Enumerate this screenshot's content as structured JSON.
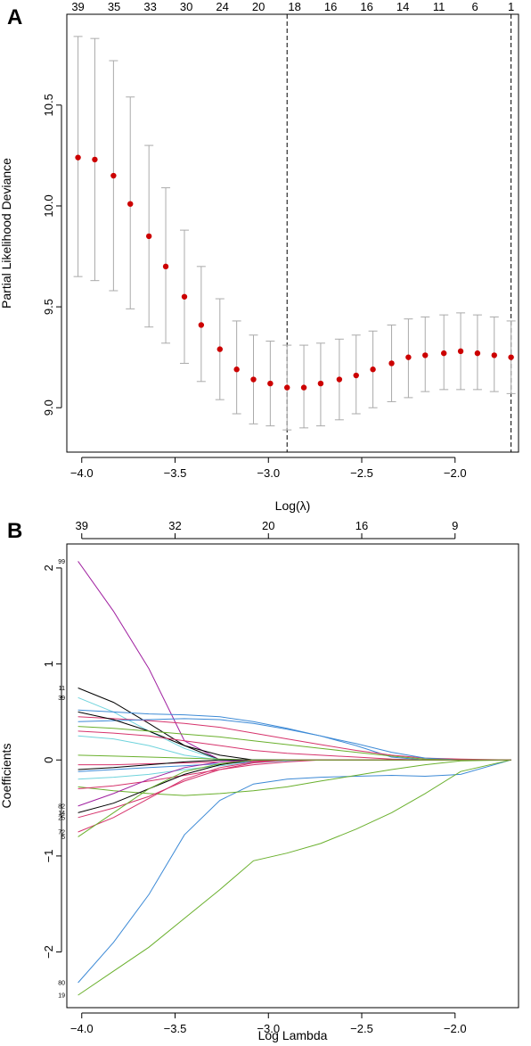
{
  "panels": {
    "a": {
      "label": "A"
    },
    "b": {
      "label": "B"
    }
  },
  "chart_data": [
    {
      "type": "scatter",
      "panel": "A",
      "xlabel": "Log(λ)",
      "ylabel": "Partial Likelihood Deviance",
      "xlim": [
        -4.08,
        -1.66
      ],
      "ylim": [
        8.78,
        10.95
      ],
      "x_ticks": [
        -4.0,
        -3.5,
        -3.0,
        -2.5,
        -2.0
      ],
      "x_tick_labels": [
        "−4.0",
        "−3.5",
        "−3.0",
        "−2.5",
        "−2.0"
      ],
      "y_ticks": [
        9.0,
        9.5,
        10.0,
        10.5
      ],
      "y_tick_labels": [
        "9.0",
        "9.5",
        "10.0",
        "10.5"
      ],
      "top_axis_labels": [
        "39",
        "35",
        "33",
        "30",
        "24",
        "20",
        "18",
        "16",
        "16",
        "14",
        "11",
        "6",
        "1"
      ],
      "vlines": [
        -2.9,
        -1.7
      ],
      "point_color": "#cc0000",
      "errorbar_color": "#aaaaaa",
      "points": [
        {
          "x": -4.02,
          "y": 10.24,
          "lo": 9.65,
          "hi": 10.84
        },
        {
          "x": -3.93,
          "y": 10.23,
          "lo": 9.63,
          "hi": 10.83
        },
        {
          "x": -3.83,
          "y": 10.15,
          "lo": 9.58,
          "hi": 10.72
        },
        {
          "x": -3.74,
          "y": 10.01,
          "lo": 9.49,
          "hi": 10.54
        },
        {
          "x": -3.64,
          "y": 9.85,
          "lo": 9.4,
          "hi": 10.3
        },
        {
          "x": -3.55,
          "y": 9.7,
          "lo": 9.32,
          "hi": 10.09
        },
        {
          "x": -3.45,
          "y": 9.55,
          "lo": 9.22,
          "hi": 9.88
        },
        {
          "x": -3.36,
          "y": 9.41,
          "lo": 9.13,
          "hi": 9.7
        },
        {
          "x": -3.26,
          "y": 9.29,
          "lo": 9.04,
          "hi": 9.54
        },
        {
          "x": -3.17,
          "y": 9.19,
          "lo": 8.97,
          "hi": 9.43
        },
        {
          "x": -3.08,
          "y": 9.14,
          "lo": 8.92,
          "hi": 9.36
        },
        {
          "x": -2.99,
          "y": 9.12,
          "lo": 8.91,
          "hi": 9.33
        },
        {
          "x": -2.9,
          "y": 9.1,
          "lo": 8.89,
          "hi": 9.31
        },
        {
          "x": -2.81,
          "y": 9.1,
          "lo": 8.9,
          "hi": 9.31
        },
        {
          "x": -2.72,
          "y": 9.12,
          "lo": 8.91,
          "hi": 9.32
        },
        {
          "x": -2.62,
          "y": 9.14,
          "lo": 8.94,
          "hi": 9.34
        },
        {
          "x": -2.53,
          "y": 9.16,
          "lo": 8.97,
          "hi": 9.36
        },
        {
          "x": -2.44,
          "y": 9.19,
          "lo": 9.0,
          "hi": 9.38
        },
        {
          "x": -2.34,
          "y": 9.22,
          "lo": 9.03,
          "hi": 9.41
        },
        {
          "x": -2.25,
          "y": 9.25,
          "lo": 9.05,
          "hi": 9.44
        },
        {
          "x": -2.16,
          "y": 9.26,
          "lo": 9.08,
          "hi": 9.45
        },
        {
          "x": -2.06,
          "y": 9.27,
          "lo": 9.09,
          "hi": 9.46
        },
        {
          "x": -1.97,
          "y": 9.28,
          "lo": 9.09,
          "hi": 9.47
        },
        {
          "x": -1.88,
          "y": 9.27,
          "lo": 9.09,
          "hi": 9.46
        },
        {
          "x": -1.79,
          "y": 9.26,
          "lo": 9.08,
          "hi": 9.45
        },
        {
          "x": -1.7,
          "y": 9.25,
          "lo": 9.07,
          "hi": 9.43
        }
      ]
    },
    {
      "type": "line",
      "panel": "B",
      "xlabel": "Log Lambda",
      "ylabel": "Coefficients",
      "xlim": [
        -4.08,
        -1.66
      ],
      "ylim": [
        -2.58,
        2.25
      ],
      "x_ticks": [
        -4.0,
        -3.5,
        -3.0,
        -2.5,
        -2.0
      ],
      "x_tick_labels": [
        "−4.0",
        "−3.5",
        "−3.0",
        "−2.5",
        "−2.0"
      ],
      "y_ticks": [
        -2,
        -1,
        0,
        1,
        2
      ],
      "y_tick_labels": [
        "−2",
        "−1",
        "0",
        "1",
        "2"
      ],
      "top_axis_labels": [
        {
          "x": -4.0,
          "label": "39"
        },
        {
          "x": -3.5,
          "label": "32"
        },
        {
          "x": -3.0,
          "label": "20"
        },
        {
          "x": -2.5,
          "label": "16"
        },
        {
          "x": -2.0,
          "label": "9"
        }
      ],
      "x": [
        -4.02,
        -3.83,
        -3.64,
        -3.45,
        -3.26,
        -3.08,
        -2.9,
        -2.72,
        -2.53,
        -2.34,
        -2.16,
        -1.97,
        -1.7
      ],
      "series": [
        {
          "label": "99",
          "color": "#a020a0",
          "values": [
            2.07,
            1.55,
            0.95,
            0.2,
            0.0,
            0.0,
            0.0,
            0.0,
            0.0,
            0.0,
            0.0,
            0.0,
            0.0
          ]
        },
        {
          "label": "80",
          "color": "#3d8ad6",
          "values": [
            -2.32,
            -1.9,
            -1.4,
            -0.78,
            -0.42,
            -0.25,
            -0.2,
            -0.18,
            -0.17,
            -0.16,
            -0.17,
            -0.15,
            0.0
          ]
        },
        {
          "label": "19",
          "color": "#6ab02d",
          "values": [
            -2.45,
            -2.2,
            -1.95,
            -1.65,
            -1.35,
            -1.05,
            -0.97,
            -0.87,
            -0.72,
            -0.55,
            -0.35,
            -0.12,
            0.0
          ]
        },
        {
          "label": "11",
          "color": "#000000",
          "values": [
            0.75,
            0.6,
            0.38,
            0.15,
            0.0,
            0.0,
            0.0,
            0.0,
            0.0,
            0.0,
            0.0,
            0.0,
            0.0
          ]
        },
        {
          "label": "39",
          "color": "#6fd3dc",
          "values": [
            0.65,
            0.5,
            0.3,
            0.12,
            0.0,
            0.0,
            0.0,
            0.0,
            0.0,
            0.0,
            0.0,
            0.0,
            0.0
          ]
        },
        {
          "label": "",
          "color": "#3d8ad6",
          "values": [
            0.52,
            0.5,
            0.48,
            0.47,
            0.45,
            0.4,
            0.33,
            0.25,
            0.15,
            0.03,
            0.0,
            0.0,
            0.0
          ]
        },
        {
          "label": "",
          "color": "#d6336c",
          "values": [
            0.45,
            0.43,
            0.41,
            0.38,
            0.34,
            0.28,
            0.22,
            0.16,
            0.1,
            0.05,
            0.02,
            0.01,
            0.0
          ]
        },
        {
          "label": "",
          "color": "#3d8ad6",
          "values": [
            0.4,
            0.41,
            0.42,
            0.43,
            0.42,
            0.38,
            0.32,
            0.25,
            0.17,
            0.08,
            0.02,
            0.0,
            0.0
          ]
        },
        {
          "label": "",
          "color": "#000000",
          "values": [
            0.5,
            0.42,
            0.3,
            0.15,
            0.05,
            0.0,
            0.0,
            0.0,
            0.0,
            0.0,
            0.0,
            0.0,
            0.0
          ]
        },
        {
          "label": "",
          "color": "#6ab02d",
          "values": [
            0.35,
            0.33,
            0.3,
            0.27,
            0.24,
            0.2,
            0.16,
            0.12,
            0.08,
            0.04,
            0.01,
            0.0,
            0.0
          ]
        },
        {
          "label": "",
          "color": "#d6336c",
          "values": [
            0.3,
            0.28,
            0.25,
            0.2,
            0.15,
            0.1,
            0.07,
            0.05,
            0.03,
            0.01,
            0.0,
            0.0,
            0.0
          ]
        },
        {
          "label": "",
          "color": "#6fd3dc",
          "values": [
            0.25,
            0.22,
            0.15,
            0.05,
            0.0,
            0.0,
            0.0,
            0.0,
            0.0,
            0.0,
            0.0,
            0.0,
            0.0
          ]
        },
        {
          "label": "",
          "color": "#6ab02d",
          "values": [
            0.05,
            0.04,
            0.03,
            0.02,
            0.01,
            0.0,
            0.0,
            0.0,
            0.0,
            0.0,
            0.0,
            0.0,
            0.0
          ]
        },
        {
          "label": "",
          "color": "#d6336c",
          "values": [
            -0.05,
            -0.05,
            -0.04,
            -0.03,
            -0.02,
            -0.01,
            0.0,
            0.0,
            0.0,
            0.0,
            0.0,
            0.0,
            0.0
          ]
        },
        {
          "label": "",
          "color": "#3d8ad6",
          "values": [
            -0.12,
            -0.1,
            -0.08,
            -0.06,
            -0.04,
            -0.02,
            -0.01,
            0.0,
            0.0,
            0.0,
            0.0,
            0.0,
            0.0
          ]
        },
        {
          "label": "",
          "color": "#6fd3dc",
          "values": [
            -0.2,
            -0.18,
            -0.15,
            -0.1,
            -0.06,
            -0.03,
            -0.01,
            0.0,
            0.0,
            0.0,
            0.0,
            0.0,
            0.0
          ]
        },
        {
          "label": "",
          "color": "#000000",
          "values": [
            -0.1,
            -0.08,
            -0.05,
            -0.02,
            0.0,
            0.0,
            0.0,
            0.0,
            0.0,
            0.0,
            0.0,
            0.0,
            0.0
          ]
        },
        {
          "label": "",
          "color": "#6ab02d",
          "values": [
            -0.28,
            -0.32,
            -0.35,
            -0.37,
            -0.35,
            -0.32,
            -0.28,
            -0.22,
            -0.16,
            -0.1,
            -0.05,
            -0.01,
            0.0
          ]
        },
        {
          "label": "",
          "color": "#d6336c",
          "values": [
            -0.3,
            -0.27,
            -0.22,
            -0.16,
            -0.1,
            -0.05,
            -0.02,
            0.0,
            0.0,
            0.0,
            0.0,
            0.0,
            0.0
          ]
        },
        {
          "label": "82",
          "color": "#a020a0",
          "values": [
            -0.48,
            -0.35,
            -0.2,
            -0.08,
            -0.02,
            0.0,
            0.0,
            0.0,
            0.0,
            0.0,
            0.0,
            0.0,
            0.0
          ]
        },
        {
          "label": "14",
          "color": "#000000",
          "values": [
            -0.55,
            -0.45,
            -0.3,
            -0.15,
            -0.05,
            0.0,
            0.0,
            0.0,
            0.0,
            0.0,
            0.0,
            0.0,
            0.0
          ]
        },
        {
          "label": "25",
          "color": "#d6336c",
          "values": [
            -0.6,
            -0.5,
            -0.38,
            -0.22,
            -0.1,
            -0.03,
            0.0,
            0.0,
            0.0,
            0.0,
            0.0,
            0.0,
            0.0
          ]
        },
        {
          "label": "72",
          "color": "#d6336c",
          "values": [
            -0.75,
            -0.6,
            -0.4,
            -0.2,
            -0.08,
            -0.02,
            0.0,
            0.0,
            0.0,
            0.0,
            0.0,
            0.0,
            0.0
          ]
        },
        {
          "label": "5",
          "color": "#6ab02d",
          "values": [
            -0.8,
            -0.55,
            -0.3,
            -0.12,
            -0.04,
            0.0,
            0.0,
            0.0,
            0.0,
            0.0,
            0.0,
            0.0,
            0.0
          ]
        }
      ]
    }
  ]
}
